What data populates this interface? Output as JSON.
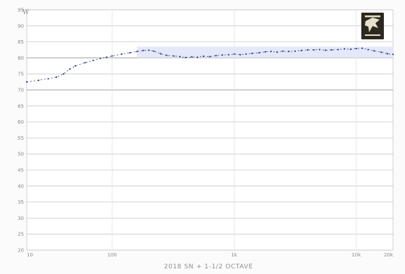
{
  "chart_data": {
    "type": "line",
    "title": "",
    "ylabel": "W",
    "xlabel": "2018 SN + 1-1/2 OCTAVE",
    "x_tick_labels": [
      "10",
      "100",
      "1k",
      "10k",
      "20k"
    ],
    "y_tick_labels": [
      "95",
      "90",
      "85",
      "80",
      "75",
      "70",
      "65",
      "60",
      "55",
      "50",
      "45",
      "40",
      "35",
      "30",
      "25",
      "20"
    ],
    "ylim": [
      20,
      95
    ],
    "xlim": [
      20,
      20000
    ],
    "x_scale": "log",
    "grid": true,
    "series": [
      {
        "x": [
          20,
          25,
          30,
          35,
          40,
          45,
          50,
          60,
          70,
          80,
          90,
          100,
          120,
          140,
          160,
          180,
          200,
          220,
          250,
          280,
          320,
          360,
          400,
          450,
          500,
          560,
          630,
          710,
          800,
          900,
          1000,
          1120,
          1250,
          1400,
          1600,
          1800,
          2000,
          2240,
          2500,
          2800,
          3150,
          3550,
          4000,
          4500,
          5000,
          5600,
          6300,
          7100,
          8000,
          9000,
          10000,
          11200,
          12500,
          14000,
          16000,
          18000,
          20000
        ],
        "y": [
          72.5,
          73,
          73.5,
          74,
          75,
          76.5,
          77.5,
          78.5,
          79.2,
          79.8,
          80.2,
          80.6,
          81.2,
          81.6,
          82,
          82.3,
          82.4,
          82.1,
          81.3,
          80.8,
          80.6,
          80.4,
          80.1,
          80.3,
          80.2,
          80.5,
          80.4,
          80.7,
          80.9,
          81,
          81.2,
          81,
          81.2,
          81.4,
          81.6,
          81.9,
          82,
          81.8,
          82.1,
          82,
          82.1,
          82.3,
          82.5,
          82.5,
          82.6,
          82.4,
          82.5,
          82.6,
          82.8,
          82.7,
          82.9,
          83,
          82.6,
          82.2,
          81.8,
          81.3,
          81.1
        ]
      }
    ]
  },
  "logo": {
    "icon": "falcon-emblem-icon",
    "bg": "#2c2820",
    "fg": "#e8e0cc"
  },
  "colors": {
    "grid": "#c8c8c8",
    "band": "#e4e8f8",
    "line": "#2a3e8a",
    "axis_text": "#8a8a8a"
  }
}
